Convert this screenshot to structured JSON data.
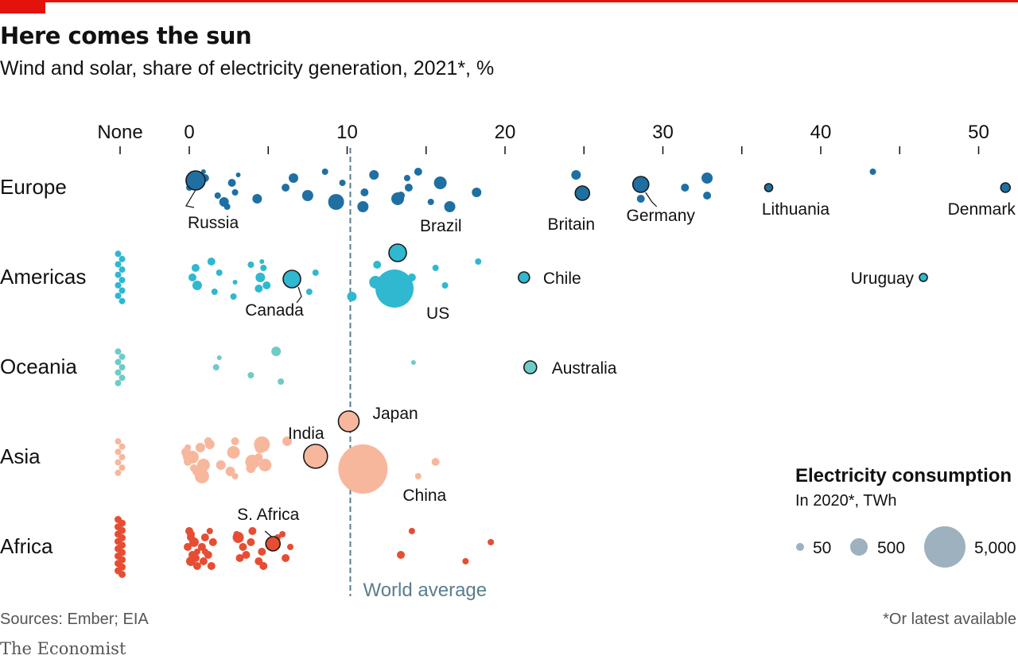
{
  "header": {
    "title": "Here comes the sun",
    "subtitle": "Wind and solar, share of electricity generation, 2021*, %"
  },
  "footer": {
    "source": "Sources: Ember; EIA",
    "footnote": "*Or latest available",
    "brand": "The Economist"
  },
  "chart_data": {
    "type": "scatter",
    "title": "Here comes the sun",
    "subtitle": "Wind and solar, share of electricity generation, 2021*, %",
    "x_tick_labels": [
      "None",
      "0",
      "10",
      "20",
      "30",
      "40",
      "50"
    ],
    "x_ticks": [
      0,
      10,
      20,
      30,
      40,
      50
    ],
    "xlim": [
      -4.5,
      52
    ],
    "categories": [
      "Europe",
      "Americas",
      "Oceania",
      "Asia",
      "Africa"
    ],
    "colors": {
      "Europe": "#1f6fa3",
      "Americas": "#2fb8cf",
      "Oceania": "#6ecbc6",
      "Asia": "#f7b79c",
      "Africa": "#e64d33",
      "legend": "#9db1bf",
      "reference": "#5a7d8f",
      "highlight_stroke": "#1a1a1a"
    },
    "reference_line": {
      "label": "World average",
      "x": 10.2
    },
    "size_legend": {
      "title": "Electricity consumption",
      "subtitle": "In 2020*, TWh",
      "items": [
        {
          "label": "50",
          "value": 50
        },
        {
          "label": "500",
          "value": 500
        },
        {
          "label": "5,000",
          "value": 5000
        }
      ]
    },
    "series": [
      {
        "name": "Europe",
        "points": [
          {
            "label": "Russia",
            "x": 0.4,
            "r": 12,
            "highlight": true
          },
          {
            "x": 0,
            "r": 4
          },
          {
            "x": 1.0,
            "r": 5
          },
          {
            "x": 1.8,
            "r": 4
          },
          {
            "x": 0.9,
            "r": 3
          },
          {
            "x": 2.2,
            "r": 6
          },
          {
            "x": 2.7,
            "r": 5
          },
          {
            "x": 2.4,
            "r": 4
          },
          {
            "x": 2.9,
            "r": 4
          },
          {
            "x": 3.1,
            "r": 3
          },
          {
            "x": 4.3,
            "r": 6
          },
          {
            "x": 6.1,
            "r": 5
          },
          {
            "x": 6.6,
            "r": 6
          },
          {
            "x": 7.5,
            "r": 7
          },
          {
            "x": 8.6,
            "r": 4
          },
          {
            "x": 9.3,
            "r": 10
          },
          {
            "x": 9.7,
            "r": 4
          },
          {
            "x": 11.0,
            "r": 7
          },
          {
            "x": 11.1,
            "r": 5
          },
          {
            "x": 11.7,
            "r": 6
          },
          {
            "x": 13.2,
            "r": 8
          },
          {
            "x": 13.9,
            "r": 5
          },
          {
            "x": 13.8,
            "r": 4
          },
          {
            "x": 13.4,
            "r": 5
          },
          {
            "x": 14.5,
            "r": 5
          },
          {
            "x": 15.3,
            "r": 4
          },
          {
            "x": 15.9,
            "r": 8
          },
          {
            "x": 16.5,
            "r": 7
          },
          {
            "x": 18.2,
            "r": 6
          },
          {
            "x": 24.5,
            "r": 6
          },
          {
            "label": "Britain",
            "x": 24.9,
            "r": 9,
            "highlight": true
          },
          {
            "label": "Germany",
            "x": 28.6,
            "r": 10,
            "highlight": true
          },
          {
            "x": 28.6,
            "r": 5
          },
          {
            "x": 31.4,
            "r": 5
          },
          {
            "x": 32.8,
            "r": 7
          },
          {
            "x": 32.8,
            "r": 5
          },
          {
            "label": "Lithuania",
            "x": 36.7,
            "r": 5,
            "highlight": true
          },
          {
            "x": 43.3,
            "r": 4
          },
          {
            "label": "Denmark",
            "x": 51.7,
            "r": 6,
            "highlight": true
          }
        ]
      },
      {
        "name": "Americas",
        "none_count": 10,
        "points": [
          {
            "x": 0.2,
            "r": 5
          },
          {
            "x": 0.4,
            "r": 5
          },
          {
            "x": 0.5,
            "r": 6
          },
          {
            "x": 1.4,
            "r": 5
          },
          {
            "x": 1.6,
            "r": 4
          },
          {
            "x": 1.9,
            "r": 4
          },
          {
            "x": 2.8,
            "r": 4
          },
          {
            "x": 2.9,
            "r": 3
          },
          {
            "x": 3.9,
            "r": 4
          },
          {
            "x": 4.4,
            "r": 5
          },
          {
            "x": 4.5,
            "r": 6
          },
          {
            "x": 4.7,
            "r": 4
          },
          {
            "x": 4.9,
            "r": 5
          },
          {
            "x": 4.6,
            "r": 3
          },
          {
            "label": "Canada",
            "x": 6.5,
            "r": 11,
            "highlight": true
          },
          {
            "x": 7.6,
            "r": 4
          },
          {
            "x": 8.0,
            "r": 4
          },
          {
            "x": 10.3,
            "r": 6
          },
          {
            "x": 11.8,
            "r": 8
          },
          {
            "x": 11.9,
            "r": 5
          },
          {
            "label": "Brazil",
            "x": 13.2,
            "r": 11,
            "highlight": true
          },
          {
            "x": 12.9,
            "r": 4
          },
          {
            "x": 14.1,
            "r": 5
          },
          {
            "label": "US",
            "x": 13.0,
            "r": 24
          },
          {
            "x": 15.6,
            "r": 4
          },
          {
            "x": 16.2,
            "r": 4
          },
          {
            "x": 18.3,
            "r": 4
          },
          {
            "label": "Chile",
            "x": 21.2,
            "r": 7,
            "highlight": true
          },
          {
            "label": "Uruguay",
            "x": 46.5,
            "r": 5,
            "highlight": true
          }
        ]
      },
      {
        "name": "Oceania",
        "none_count": 7,
        "points": [
          {
            "x": 1.7,
            "r": 4
          },
          {
            "x": 1.9,
            "r": 3
          },
          {
            "x": 3.9,
            "r": 4
          },
          {
            "x": 5.5,
            "r": 6
          },
          {
            "x": 5.8,
            "r": 4
          },
          {
            "x": 14.2,
            "r": 3
          },
          {
            "label": "Australia",
            "x": 21.6,
            "r": 8,
            "highlight": true
          }
        ]
      },
      {
        "name": "Asia",
        "none_count": 7,
        "points": [
          {
            "x": 0.2,
            "r": 8
          },
          {
            "x": -0.1,
            "r": 4
          },
          {
            "x": 0.9,
            "r": 8
          },
          {
            "x": 1.2,
            "r": 5
          },
          {
            "x": 0.5,
            "r": 6
          },
          {
            "x": -0.2,
            "r": 6
          },
          {
            "x": 0.8,
            "r": 9
          },
          {
            "x": -0.1,
            "r": 5
          },
          {
            "x": 1.3,
            "r": 6
          },
          {
            "x": 0.3,
            "r": 5
          },
          {
            "x": -0.1,
            "r": 6
          },
          {
            "x": 0.7,
            "r": 6
          },
          {
            "x": 2.0,
            "r": 6
          },
          {
            "x": 2.9,
            "r": 5
          },
          {
            "x": 2.6,
            "r": 6
          },
          {
            "x": 2.8,
            "r": 8
          },
          {
            "x": 2.9,
            "r": 4
          },
          {
            "x": 4.0,
            "r": 9
          },
          {
            "x": 4.6,
            "r": 10
          },
          {
            "x": 3.9,
            "r": 6
          },
          {
            "x": 4.4,
            "r": 5
          },
          {
            "x": 4.5,
            "r": 7
          },
          {
            "x": 4.8,
            "r": 8
          },
          {
            "x": 6.2,
            "r": 6
          },
          {
            "label": "India",
            "x": 8.0,
            "r": 15,
            "highlight": true
          },
          {
            "label": "Japan",
            "x": 10.1,
            "r": 13,
            "highlight": true
          },
          {
            "x": 10.0,
            "r": 4
          },
          {
            "x": 10.9,
            "r": 7
          },
          {
            "label": "China",
            "x": 11.0,
            "r": 31
          },
          {
            "x": 14.5,
            "r": 4
          },
          {
            "x": 15.6,
            "r": 5
          }
        ]
      },
      {
        "name": "Africa",
        "none_count": 16,
        "points": [
          {
            "x": -0.1,
            "r": 5
          },
          {
            "x": 0.1,
            "r": 5
          },
          {
            "x": 0.2,
            "r": 5
          },
          {
            "x": 0.0,
            "r": 5
          },
          {
            "x": 0.1,
            "r": 6
          },
          {
            "x": 0.3,
            "r": 6
          },
          {
            "x": 0.5,
            "r": 5
          },
          {
            "x": 0.5,
            "r": 4
          },
          {
            "x": 0.1,
            "r": 5
          },
          {
            "x": 0.4,
            "r": 5
          },
          {
            "x": 0.8,
            "r": 5
          },
          {
            "x": 1.0,
            "r": 5
          },
          {
            "x": 1.2,
            "r": 5
          },
          {
            "x": 1.3,
            "r": 4
          },
          {
            "x": 0.9,
            "r": 5
          },
          {
            "x": 1.5,
            "r": 5
          },
          {
            "x": 1.4,
            "r": 5
          },
          {
            "x": 1.0,
            "r": 4
          },
          {
            "x": 3.0,
            "r": 4
          },
          {
            "x": 3.2,
            "r": 5
          },
          {
            "x": 3.4,
            "r": 5
          },
          {
            "x": 3.1,
            "r": 7
          },
          {
            "x": 3.6,
            "r": 5
          },
          {
            "x": 4.0,
            "r": 5
          },
          {
            "x": 4.4,
            "r": 5
          },
          {
            "x": 3.9,
            "r": 5
          },
          {
            "x": 4.7,
            "r": 5
          },
          {
            "x": 4.6,
            "r": 5
          },
          {
            "label": "S. Africa",
            "x": 5.3,
            "r": 9,
            "highlight": true
          },
          {
            "x": 5.9,
            "r": 4
          },
          {
            "x": 6.1,
            "r": 5
          },
          {
            "x": 6.4,
            "r": 4
          },
          {
            "x": 5.6,
            "r": 4
          },
          {
            "x": 13.4,
            "r": 5
          },
          {
            "x": 14.1,
            "r": 4
          },
          {
            "x": 17.5,
            "r": 4
          },
          {
            "x": 19.1,
            "r": 4
          }
        ]
      }
    ]
  }
}
